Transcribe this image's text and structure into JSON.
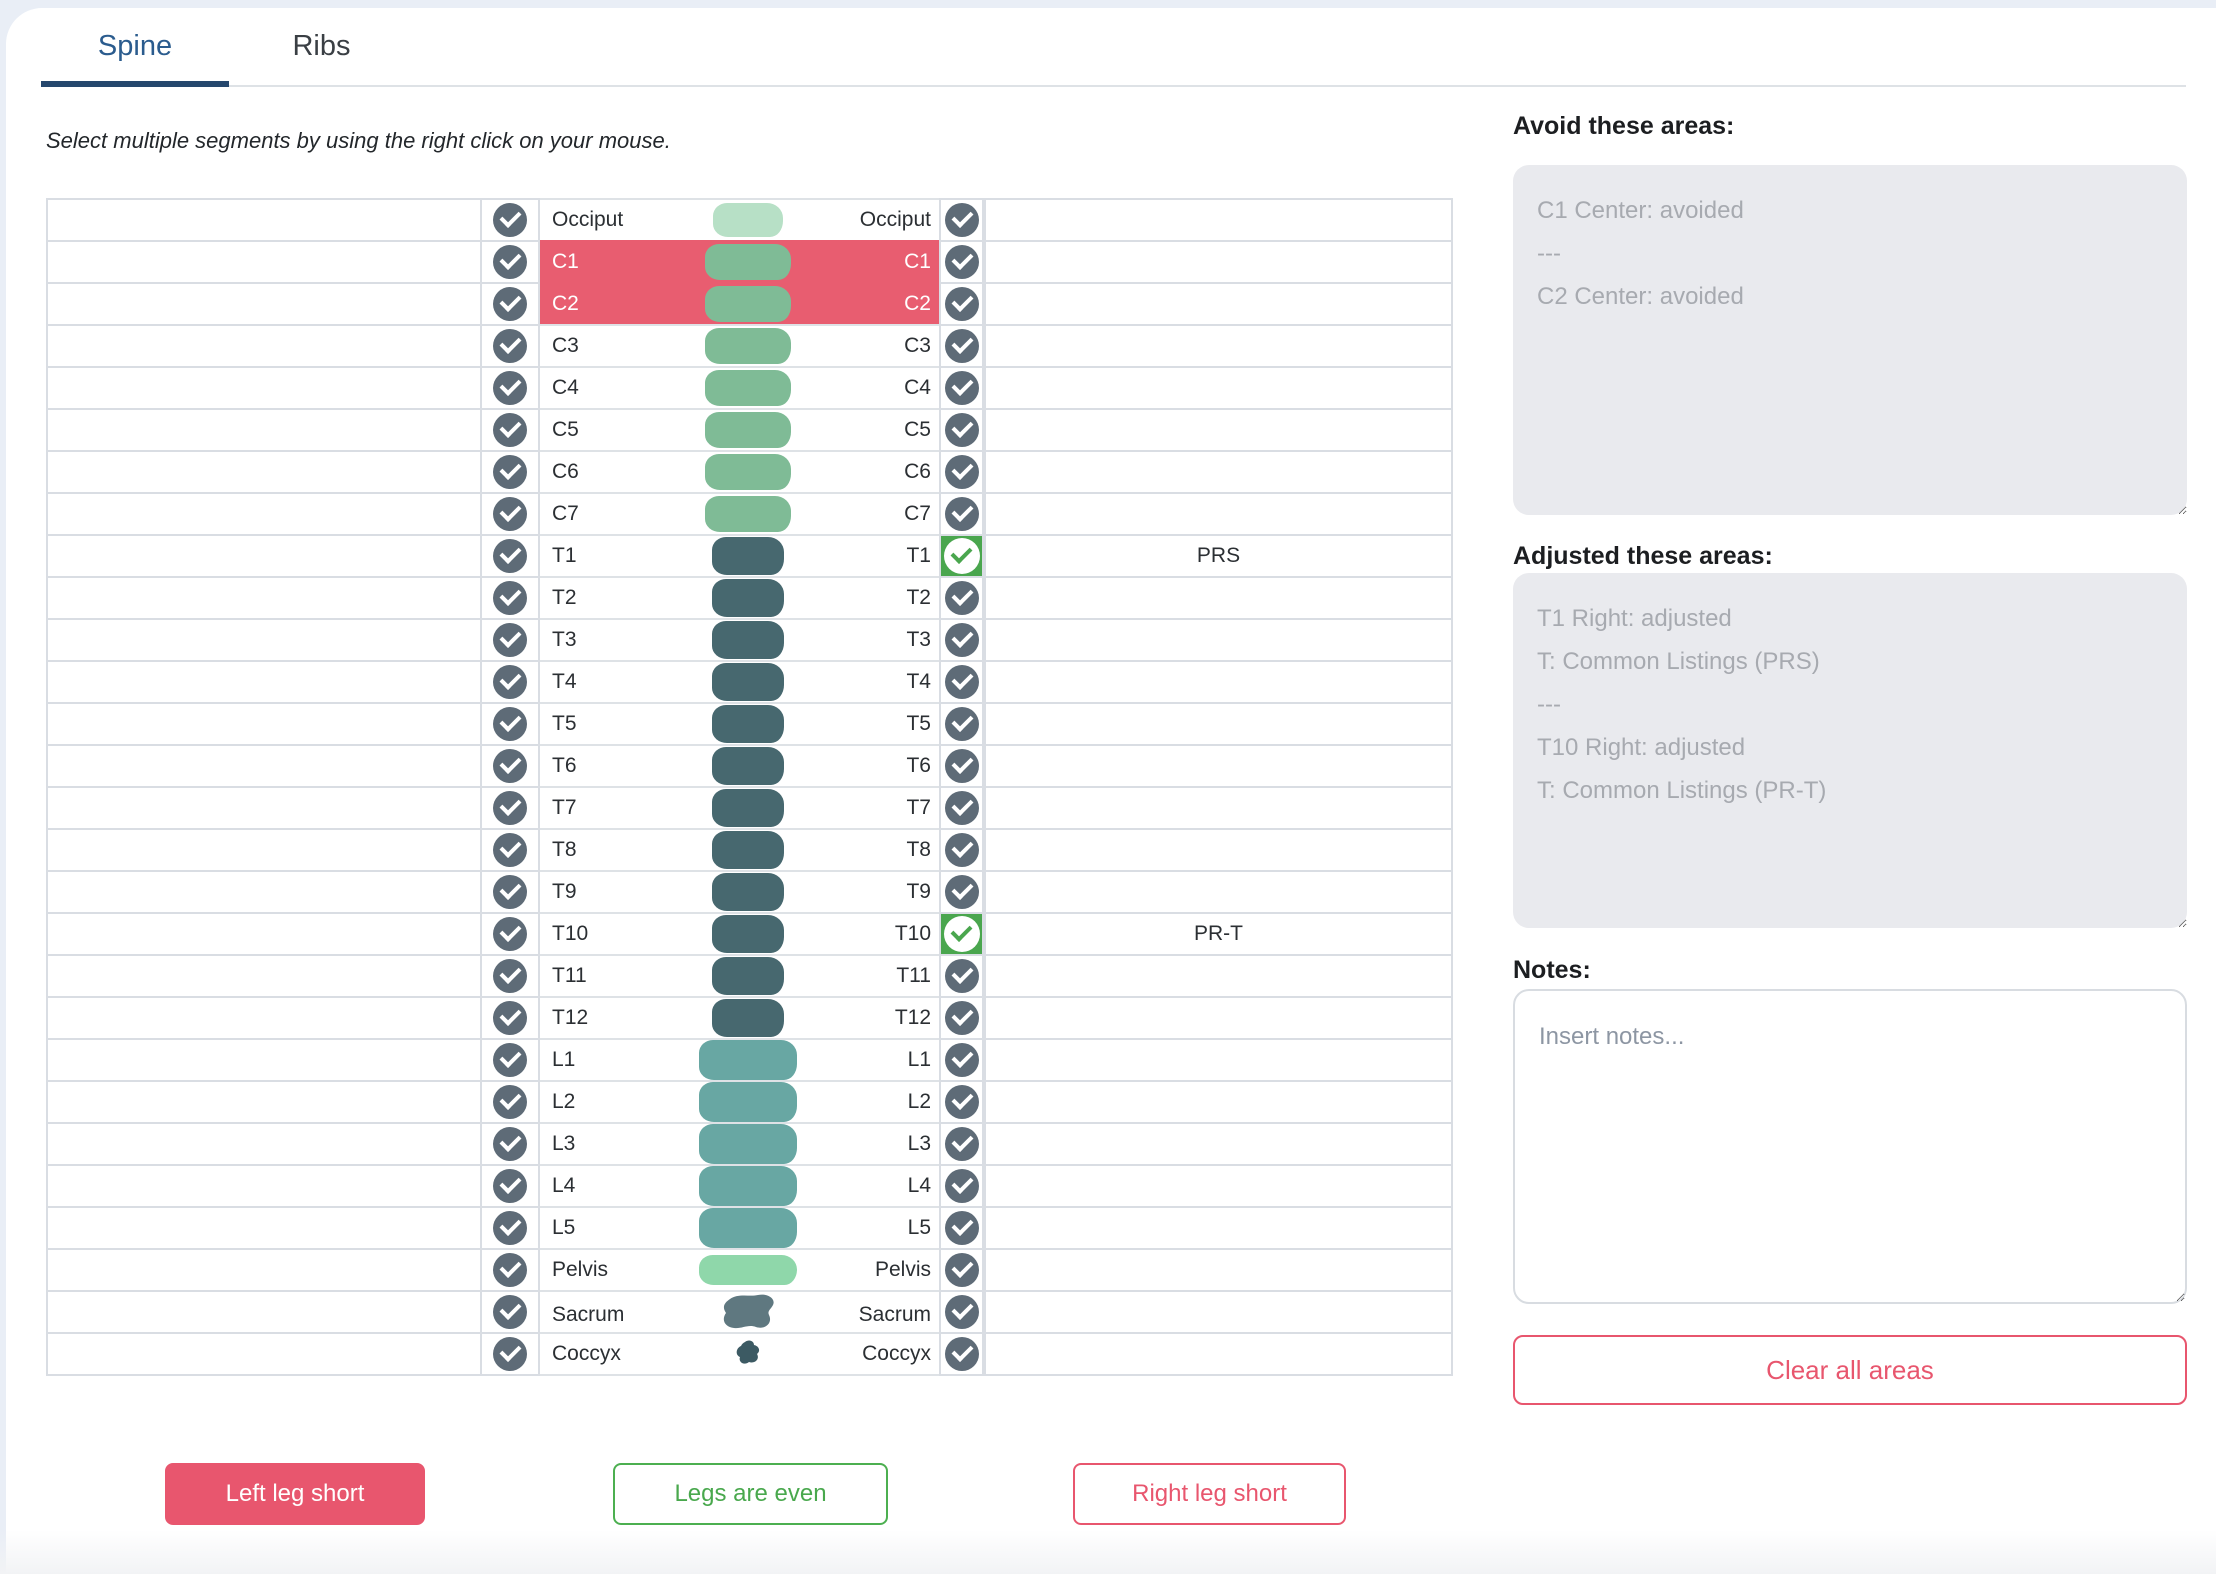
{
  "tabs": [
    {
      "label": "Spine",
      "active": true
    },
    {
      "label": "Ribs",
      "active": false
    }
  ],
  "instruction": "Select multiple segments by using the right click on your mouse.",
  "segments": [
    {
      "label": "Occiput",
      "type": "occiput",
      "state": "none",
      "right_text": ""
    },
    {
      "label": "C1",
      "type": "cervical",
      "state": "avoided",
      "right_text": ""
    },
    {
      "label": "C2",
      "type": "cervical",
      "state": "avoided",
      "right_text": ""
    },
    {
      "label": "C3",
      "type": "cervical",
      "state": "none",
      "right_text": ""
    },
    {
      "label": "C4",
      "type": "cervical",
      "state": "none",
      "right_text": ""
    },
    {
      "label": "C5",
      "type": "cervical",
      "state": "none",
      "right_text": ""
    },
    {
      "label": "C6",
      "type": "cervical",
      "state": "none",
      "right_text": ""
    },
    {
      "label": "C7",
      "type": "cervical",
      "state": "none",
      "right_text": ""
    },
    {
      "label": "T1",
      "type": "thoracic",
      "state": "adjusted_right",
      "right_text": "PRS"
    },
    {
      "label": "T2",
      "type": "thoracic",
      "state": "none",
      "right_text": ""
    },
    {
      "label": "T3",
      "type": "thoracic",
      "state": "none",
      "right_text": ""
    },
    {
      "label": "T4",
      "type": "thoracic",
      "state": "none",
      "right_text": ""
    },
    {
      "label": "T5",
      "type": "thoracic",
      "state": "none",
      "right_text": ""
    },
    {
      "label": "T6",
      "type": "thoracic",
      "state": "none",
      "right_text": ""
    },
    {
      "label": "T7",
      "type": "thoracic",
      "state": "none",
      "right_text": ""
    },
    {
      "label": "T8",
      "type": "thoracic",
      "state": "none",
      "right_text": ""
    },
    {
      "label": "T9",
      "type": "thoracic",
      "state": "none",
      "right_text": ""
    },
    {
      "label": "T10",
      "type": "thoracic",
      "state": "adjusted_right",
      "right_text": "PR-T"
    },
    {
      "label": "T11",
      "type": "thoracic",
      "state": "none",
      "right_text": ""
    },
    {
      "label": "T12",
      "type": "thoracic",
      "state": "none",
      "right_text": ""
    },
    {
      "label": "L1",
      "type": "lumbar",
      "state": "none",
      "right_text": ""
    },
    {
      "label": "L2",
      "type": "lumbar",
      "state": "none",
      "right_text": ""
    },
    {
      "label": "L3",
      "type": "lumbar",
      "state": "none",
      "right_text": ""
    },
    {
      "label": "L4",
      "type": "lumbar",
      "state": "none",
      "right_text": ""
    },
    {
      "label": "L5",
      "type": "lumbar",
      "state": "none",
      "right_text": ""
    },
    {
      "label": "Pelvis",
      "type": "pelvis",
      "state": "none",
      "right_text": ""
    },
    {
      "label": "Sacrum",
      "type": "sacrum",
      "state": "none",
      "right_text": ""
    },
    {
      "label": "Coccyx",
      "type": "coccyx",
      "state": "none",
      "right_text": ""
    }
  ],
  "panels": {
    "avoid": {
      "heading": "Avoid these areas:",
      "lines": [
        "C1 Center: avoided",
        "---",
        "C2 Center: avoided"
      ]
    },
    "adjusted": {
      "heading": "Adjusted these areas:",
      "lines": [
        "T1 Right: adjusted",
        "T: Common Listings (PRS)",
        "---",
        "T10 Right: adjusted",
        "T: Common Listings (PR-T)"
      ]
    },
    "notes": {
      "heading": "Notes:",
      "placeholder": "Insert notes..."
    },
    "clear_button": "Clear all areas"
  },
  "leg_buttons": [
    {
      "label": "Left leg short",
      "style": "solid-red"
    },
    {
      "label": "Legs are even",
      "style": "outline-green"
    },
    {
      "label": "Right leg short",
      "style": "outline-red"
    }
  ],
  "colors": {
    "occiput": "#b7e0c6",
    "cervical": "#7fbb96",
    "thoracic": "#47686f",
    "lumbar": "#68a7a3",
    "pelvis": "#8fd7aa",
    "sacrum": "#5f7880",
    "coccyx": "#3c5a63",
    "avoided": "#e85d70",
    "adjusted": "#4aa64e",
    "check_circle": "#5e6b77",
    "accent_red": "#e8566e",
    "accent_green": "#4caf50",
    "tab_text": "#2b5c8e",
    "tab_underline": "#25476d"
  }
}
